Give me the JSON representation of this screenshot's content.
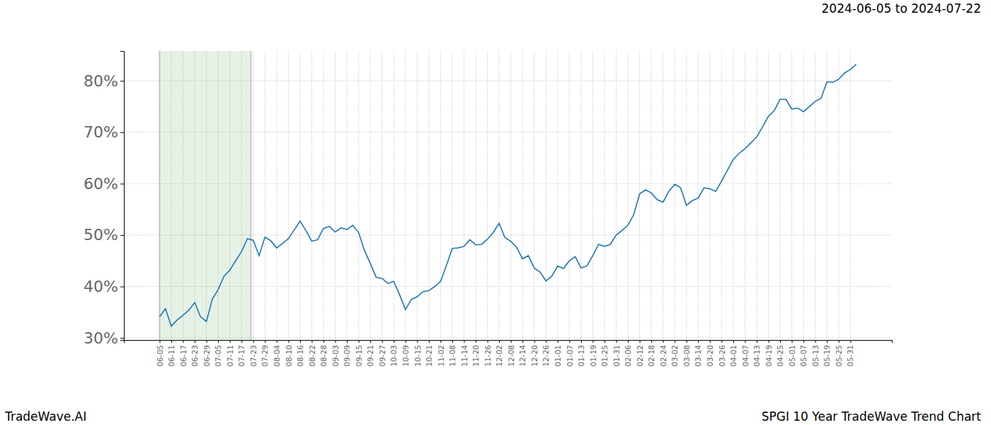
{
  "chart_data": {
    "type": "line",
    "title": "SPGI 10 Year TradeWave Trend Chart",
    "subtitle": "2024-06-05 to 2024-07-22",
    "annotations": [
      "TradeWave.AI"
    ],
    "categories": [
      "06-05",
      null,
      "06-11",
      null,
      "06-17",
      null,
      "06-23",
      null,
      "06-29",
      null,
      "07-05",
      null,
      "07-11",
      null,
      "07-17",
      null,
      "07-23",
      null,
      "07-29",
      null,
      "08-04",
      null,
      "08-10",
      null,
      "08-16",
      null,
      "08-22",
      null,
      "08-28",
      null,
      "09-03",
      null,
      "09-09",
      null,
      "09-15",
      null,
      "09-21",
      null,
      "09-27",
      null,
      "10-03",
      null,
      "10-09",
      null,
      "10-15",
      null,
      "10-21",
      null,
      "11-02",
      null,
      "11-08",
      null,
      "11-14",
      null,
      "11-20",
      null,
      "11-26",
      null,
      "12-02",
      null,
      "12-08",
      null,
      "12-14",
      null,
      "12-20",
      null,
      "12-26",
      null,
      "01-01",
      null,
      "01-07",
      null,
      "01-13",
      null,
      "01-19",
      null,
      "01-25",
      null,
      "01-31",
      null,
      "02-06",
      null,
      "02-12",
      null,
      "02-18",
      null,
      "02-24",
      null,
      "03-02",
      null,
      "03-08",
      null,
      "03-14",
      null,
      "03-20",
      null,
      "03-26",
      null,
      "04-01",
      null,
      "04-07",
      null,
      "04-13",
      null,
      "04-19",
      null,
      "04-25",
      null,
      "05-01",
      null,
      "05-07",
      null,
      "05-13",
      null,
      "05-19",
      null,
      "05-25",
      null,
      "05-31",
      null
    ],
    "series": [
      {
        "name": "SPGI",
        "color": "#1f77b4",
        "values": [
          34.1,
          35.7,
          32.3,
          33.5,
          34.4,
          35.4,
          36.9,
          34.1,
          33.2,
          37.5,
          39.4,
          42.0,
          43.2,
          45.0,
          46.8,
          49.3,
          49.0,
          46.0,
          49.6,
          48.9,
          47.5,
          48.4,
          49.3,
          51.0,
          52.7,
          50.9,
          48.8,
          49.1,
          51.3,
          51.7,
          50.6,
          51.4,
          51.1,
          51.9,
          50.5,
          47.0,
          44.5,
          41.8,
          41.6,
          40.6,
          41.0,
          38.4,
          35.5,
          37.5,
          38.0,
          39.0,
          39.2,
          40.0,
          41.0,
          44.1,
          47.4,
          47.5,
          47.8,
          49.1,
          48.1,
          48.2,
          49.2,
          50.5,
          52.3,
          49.5,
          48.8,
          47.6,
          45.4,
          46.0,
          43.6,
          42.8,
          41.1,
          42.0,
          44.0,
          43.5,
          45.0,
          45.8,
          43.6,
          44.0,
          46.0,
          48.2,
          47.8,
          48.2,
          50.0,
          50.9,
          51.9,
          54.0,
          58.0,
          58.8,
          58.2,
          56.9,
          56.4,
          58.5,
          59.9,
          59.2,
          55.8,
          56.7,
          57.2,
          59.2,
          59.0,
          58.5,
          60.5,
          62.6,
          64.7,
          65.9,
          66.8,
          67.9,
          69.1,
          71.0,
          73.1,
          74.2,
          76.4,
          76.4,
          74.5,
          74.7,
          74.0,
          75.0,
          76.0,
          76.6,
          79.8,
          79.7,
          80.3,
          81.5,
          82.2,
          83.2
        ]
      }
    ],
    "highlight": [
      0,
      15.6
    ],
    "ylim": [
      29.6,
      85.8
    ],
    "yticks": [
      {
        "value": 30,
        "label": "30%"
      },
      {
        "value": 40,
        "label": "40%"
      },
      {
        "value": 50,
        "label": "50%"
      },
      {
        "value": 60,
        "label": "60%"
      },
      {
        "value": 70,
        "label": "70%"
      },
      {
        "value": 80,
        "label": "80%"
      }
    ],
    "grid": true
  }
}
